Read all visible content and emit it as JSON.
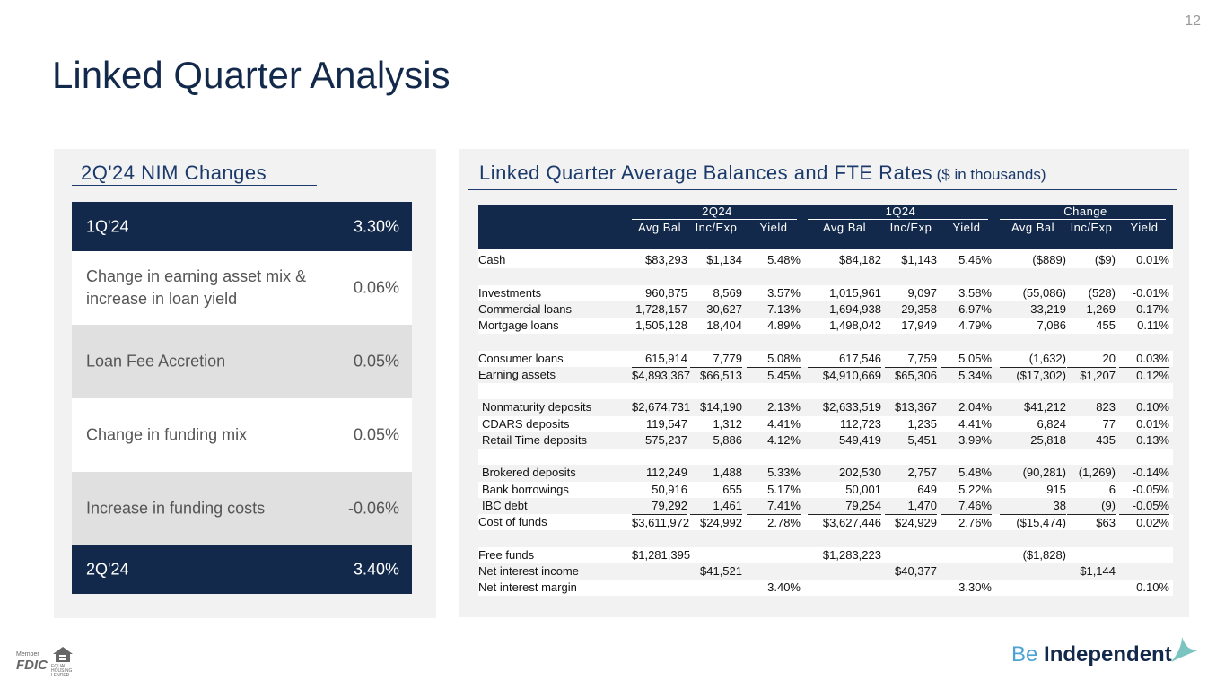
{
  "page_number": "12",
  "title": "Linked Quarter Analysis",
  "nim_panel": {
    "title": "2Q'24 NIM Changes",
    "rows": [
      {
        "label": "1Q'24",
        "value": "3.30%"
      },
      {
        "label": "Change in earning asset mix & increase in loan yield",
        "value": "0.06%"
      },
      {
        "label": "Loan Fee Accretion",
        "value": "0.05%"
      },
      {
        "label": "Change in funding mix",
        "value": "0.05%"
      },
      {
        "label": "Increase in funding costs",
        "value": "-0.06%"
      },
      {
        "label": "2Q'24",
        "value": "3.40%"
      }
    ]
  },
  "table_panel": {
    "title": "Linked Quarter Average Balances and FTE Rates",
    "subtitle": "($ in thousands)",
    "groups": [
      "2Q24",
      "1Q24",
      "Change"
    ],
    "columns": [
      "Avg Bal",
      "Inc/Exp",
      "Yield",
      "Avg Bal",
      "Inc/Exp",
      "Yield",
      "Avg Bal",
      "Inc/Exp",
      "Yield"
    ],
    "rows": [
      {
        "label": "Cash",
        "cells": [
          "$83,293",
          "$1,134",
          "5.48%",
          "$84,182",
          "$1,143",
          "5.46%",
          "($889)",
          "($9)",
          "0.01%"
        ]
      },
      {
        "label": "Investments",
        "cells": [
          "960,875",
          "8,569",
          "3.57%",
          "1,015,961",
          "9,097",
          "3.58%",
          "(55,086)",
          "(528)",
          "-0.01%"
        ]
      },
      {
        "label": "Commercial loans",
        "cells": [
          "1,728,157",
          "30,627",
          "7.13%",
          "1,694,938",
          "29,358",
          "6.97%",
          "33,219",
          "1,269",
          "0.17%"
        ]
      },
      {
        "label": "Mortgage loans",
        "cells": [
          "1,505,128",
          "18,404",
          "4.89%",
          "1,498,042",
          "17,949",
          "4.79%",
          "7,086",
          "455",
          "0.11%"
        ]
      },
      {
        "label": "Consumer loans",
        "cells": [
          "615,914",
          "7,779",
          "5.08%",
          "617,546",
          "7,759",
          "5.05%",
          "(1,632)",
          "20",
          "0.03%"
        ]
      },
      {
        "label": "Earning assets",
        "cells": [
          "$4,893,367",
          "$66,513",
          "5.45%",
          "$4,910,669",
          "$65,306",
          "5.34%",
          "($17,302)",
          "$1,207",
          "0.12%"
        ]
      },
      {
        "label": "Nonmaturity deposits",
        "cells": [
          "$2,674,731",
          "$14,190",
          "2.13%",
          "$2,633,519",
          "$13,367",
          "2.04%",
          "$41,212",
          "823",
          "0.10%"
        ]
      },
      {
        "label": "CDARS deposits",
        "cells": [
          "119,547",
          "1,312",
          "4.41%",
          "112,723",
          "1,235",
          "4.41%",
          "6,824",
          "77",
          "0.01%"
        ]
      },
      {
        "label": "Retail Time deposits",
        "cells": [
          "575,237",
          "5,886",
          "4.12%",
          "549,419",
          "5,451",
          "3.99%",
          "25,818",
          "435",
          "0.13%"
        ]
      },
      {
        "label": "Brokered deposits",
        "cells": [
          "112,249",
          "1,488",
          "5.33%",
          "202,530",
          "2,757",
          "5.48%",
          "(90,281)",
          "(1,269)",
          "-0.14%"
        ]
      },
      {
        "label": "Bank borrowings",
        "cells": [
          "50,916",
          "655",
          "5.17%",
          "50,001",
          "649",
          "5.22%",
          "915",
          "6",
          "-0.05%"
        ]
      },
      {
        "label": "IBC debt",
        "cells": [
          "79,292",
          "1,461",
          "7.41%",
          "79,254",
          "1,470",
          "7.46%",
          "38",
          "(9)",
          "-0.05%"
        ]
      },
      {
        "label": "Cost of funds",
        "cells": [
          "$3,611,972",
          "$24,992",
          "2.78%",
          "$3,627,446",
          "$24,929",
          "2.76%",
          "($15,474)",
          "$63",
          "0.02%"
        ]
      },
      {
        "label": "Free funds",
        "cells": [
          "$1,281,395",
          null,
          null,
          "$1,283,223",
          null,
          null,
          "($1,828)",
          null,
          null
        ]
      },
      {
        "label": "Net interest income",
        "cells": [
          null,
          "$41,521",
          null,
          null,
          "$40,377",
          null,
          null,
          "$1,144",
          null
        ]
      },
      {
        "label": "Net interest margin",
        "cells": [
          null,
          null,
          "3.40%",
          null,
          null,
          "3.30%",
          null,
          null,
          "0.10%"
        ]
      }
    ]
  },
  "footer": {
    "member": "Member",
    "fdic": "FDIC",
    "lender": "EQUAL HOUSING LENDER",
    "brand_prefix": "Be",
    "brand_name": "Independent"
  }
}
